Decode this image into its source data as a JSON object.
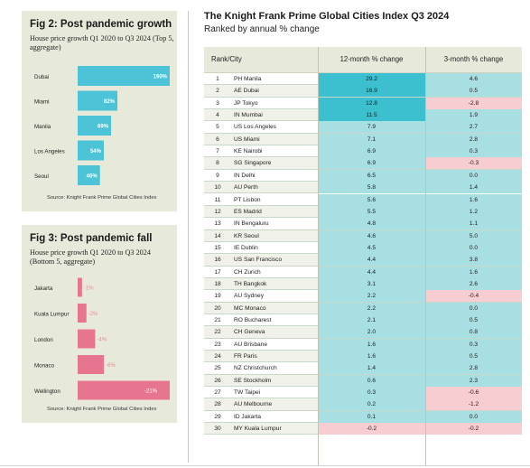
{
  "fig2": {
    "title": "Fig 2: Post pandemic growth",
    "subtitle": "House price growth Q1 2020 to Q3 2024 (Top 5, aggregate)",
    "source": "Source: Knight Frank Prime Global Cities Index"
  },
  "fig3": {
    "title": "Fig 3: Post pandemic fall",
    "subtitle": "House price growth Q1 2020 to Q3 2024 (Bottom 5, aggregate)",
    "source": "Source: Knight Frank Prime Global Cities Index"
  },
  "table": {
    "title": "The Knight Frank Prime Global Cities Index Q3 2024",
    "subtitle": "Ranked by annual % change",
    "headers": {
      "rank": "Rank/City",
      "twelve": "12-month % change",
      "three": "3-month % change"
    }
  },
  "colors": {
    "growth_bar": "#4cc3d6",
    "fall_bar": "#e8758f",
    "top_cell": "#3cbfcf",
    "positive_cell": "#a8dfe3",
    "negative_cell": "#f8cdd2",
    "panel_bg": "#e7eadb"
  },
  "chart_data": [
    {
      "type": "bar",
      "orientation": "horizontal",
      "title": "Fig 2: Post pandemic growth",
      "categories": [
        "Dubai",
        "Miami",
        "Manila",
        "Los Angeles",
        "Seoul"
      ],
      "values": [
        190,
        82,
        69,
        54,
        46
      ],
      "value_labels": [
        "190%",
        "82%",
        "69%",
        "54%",
        "46%"
      ],
      "xlim": [
        0,
        190
      ]
    },
    {
      "type": "bar",
      "orientation": "horizontal",
      "title": "Fig 3: Post pandemic fall",
      "categories": [
        "Jakarta",
        "Kuala Lumpur",
        "London",
        "Monaco",
        "Wellington"
      ],
      "values": [
        -1,
        -2,
        -4,
        -6,
        -21
      ],
      "value_labels": [
        "-1%",
        "-2%",
        "-4%",
        "-6%",
        "-21%"
      ],
      "xlim": [
        0,
        -21
      ]
    },
    {
      "type": "table",
      "title": "The Knight Frank Prime Global Cities Index Q3 2024",
      "columns": [
        "Rank/City",
        "12-month % change",
        "3-month % change"
      ],
      "rows": [
        {
          "rank": 1,
          "city": "PH Manila",
          "twelve": 29.2,
          "three": 4.6
        },
        {
          "rank": 2,
          "city": "AE Dubai",
          "twelve": 16.9,
          "three": 0.5
        },
        {
          "rank": 3,
          "city": "JP Tokyo",
          "twelve": 12.8,
          "three": -2.8
        },
        {
          "rank": 4,
          "city": "IN Mumbai",
          "twelve": 11.5,
          "three": 1.9
        },
        {
          "rank": 5,
          "city": "US Los Angeles",
          "twelve": 7.9,
          "three": 2.7
        },
        {
          "rank": 6,
          "city": "US Miami",
          "twelve": 7.1,
          "three": 2.8
        },
        {
          "rank": 7,
          "city": "KE Nairobi",
          "twelve": 6.9,
          "three": 0.3
        },
        {
          "rank": 8,
          "city": "SG Singapore",
          "twelve": 6.9,
          "three": -0.3
        },
        {
          "rank": 9,
          "city": "IN Delhi",
          "twelve": 6.5,
          "three": 0.0
        },
        {
          "rank": 10,
          "city": "AU Perth",
          "twelve": 5.8,
          "three": 1.4
        },
        {
          "rank": 11,
          "city": "PT Lisbon",
          "twelve": 5.6,
          "three": 1.6
        },
        {
          "rank": 12,
          "city": "ES Madrid",
          "twelve": 5.5,
          "three": 1.2
        },
        {
          "rank": 13,
          "city": "IN Bengaluru",
          "twelve": 4.8,
          "three": 1.1
        },
        {
          "rank": 14,
          "city": "KR Seoul",
          "twelve": 4.6,
          "three": 5.0
        },
        {
          "rank": 15,
          "city": "IE Dublin",
          "twelve": 4.5,
          "three": 0.0
        },
        {
          "rank": 16,
          "city": "US San Francisco",
          "twelve": 4.4,
          "three": 3.8
        },
        {
          "rank": 17,
          "city": "CH Zurich",
          "twelve": 4.4,
          "three": 1.6
        },
        {
          "rank": 18,
          "city": "TH Bangkok",
          "twelve": 3.1,
          "three": 2.6
        },
        {
          "rank": 19,
          "city": "AU Sydney",
          "twelve": 2.2,
          "three": -0.4
        },
        {
          "rank": 20,
          "city": "MC Monaco",
          "twelve": 2.2,
          "three": 0.0
        },
        {
          "rank": 21,
          "city": "RO Bucharest",
          "twelve": 2.1,
          "three": 0.5
        },
        {
          "rank": 22,
          "city": "CH Geneva",
          "twelve": 2.0,
          "three": 0.8
        },
        {
          "rank": 23,
          "city": "AU Brisbane",
          "twelve": 1.6,
          "three": 0.3
        },
        {
          "rank": 24,
          "city": "FR Paris",
          "twelve": 1.6,
          "three": 0.5
        },
        {
          "rank": 25,
          "city": "NZ Christchurch",
          "twelve": 1.4,
          "three": 2.8
        },
        {
          "rank": 26,
          "city": "SE Stockholm",
          "twelve": 0.6,
          "three": 2.3
        },
        {
          "rank": 27,
          "city": "TW Taipei",
          "twelve": 0.3,
          "three": -0.6
        },
        {
          "rank": 28,
          "city": "AU Melbourne",
          "twelve": 0.2,
          "three": -1.2
        },
        {
          "rank": 29,
          "city": "ID Jakarta",
          "twelve": 0.1,
          "three": 0.0
        },
        {
          "rank": 30,
          "city": "MY Kuala Lumpur",
          "twelve": -0.2,
          "three": -0.2
        }
      ]
    }
  ]
}
